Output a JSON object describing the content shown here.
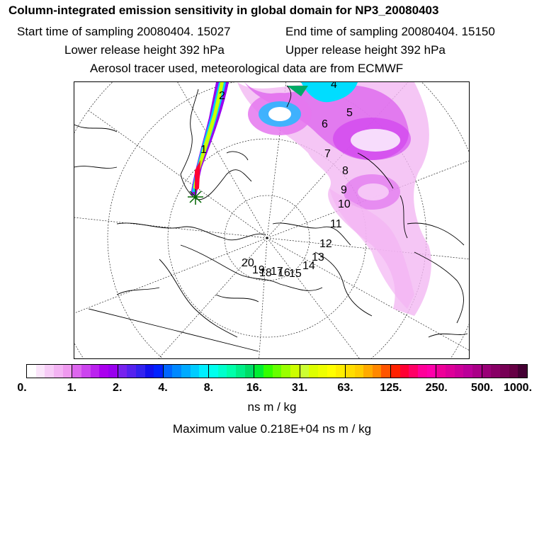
{
  "header": {
    "title": "Column-integrated emission sensitivity in global domain for NP3_20080403",
    "start_label": "Start time of sampling 20080404. 15027",
    "end_label": "End time of sampling 20080404. 15150",
    "lower_label": "Lower release height  392 hPa",
    "upper_label": "Upper release height  392 hPa",
    "tracer_label": "Aerosol tracer used, meteorological data are from ECMWF"
  },
  "map": {
    "trajectory_labels": [
      "1",
      "2",
      "4",
      "5",
      "6",
      "7",
      "8",
      "9",
      "10",
      "11",
      "12",
      "13",
      "14",
      "15",
      "16",
      "17",
      "18",
      "19",
      "20"
    ]
  },
  "colorbar": {
    "ticks": [
      "0.",
      "1.",
      "2.",
      "4.",
      "8.",
      "16.",
      "31.",
      "63.",
      "125.",
      "250.",
      "500.",
      "1000."
    ],
    "colors": [
      [
        "#ffffff",
        "#fbe6fb",
        "#f7ccf7",
        "#f3b3f3",
        "#ef99ef"
      ],
      [
        "#dd66ee",
        "#cc44ee",
        "#bb22ee",
        "#aa00ee",
        "#9900ee"
      ],
      [
        "#7722ee",
        "#5522ee",
        "#3322ee",
        "#1111ee",
        "#0022ff"
      ],
      [
        "#0066ff",
        "#0088ff",
        "#00aaff",
        "#00ccff",
        "#00eeff"
      ],
      [
        "#00ffee",
        "#00ffcc",
        "#00ffaa",
        "#00ee88",
        "#00dd66"
      ],
      [
        "#00ee33",
        "#33ff00",
        "#66ff00",
        "#99ff00",
        "#ccff00"
      ],
      [
        "#ccff33",
        "#ddff00",
        "#eeff00",
        "#ffff00",
        "#ffee00"
      ],
      [
        "#ffdd00",
        "#ffcc00",
        "#ffaa00",
        "#ff8800",
        "#ff5500"
      ],
      [
        "#ff2200",
        "#ff0033",
        "#ff0066",
        "#ff0099",
        "#ff00aa"
      ],
      [
        "#ee0099",
        "#dd0099",
        "#cc0099",
        "#bb0099",
        "#aa0088"
      ],
      [
        "#990077",
        "#880066",
        "#770055",
        "#660044",
        "#440033"
      ]
    ],
    "units": "ns m / kg",
    "max_value_label": "Maximum value  0.218E+04 ns m / kg"
  }
}
